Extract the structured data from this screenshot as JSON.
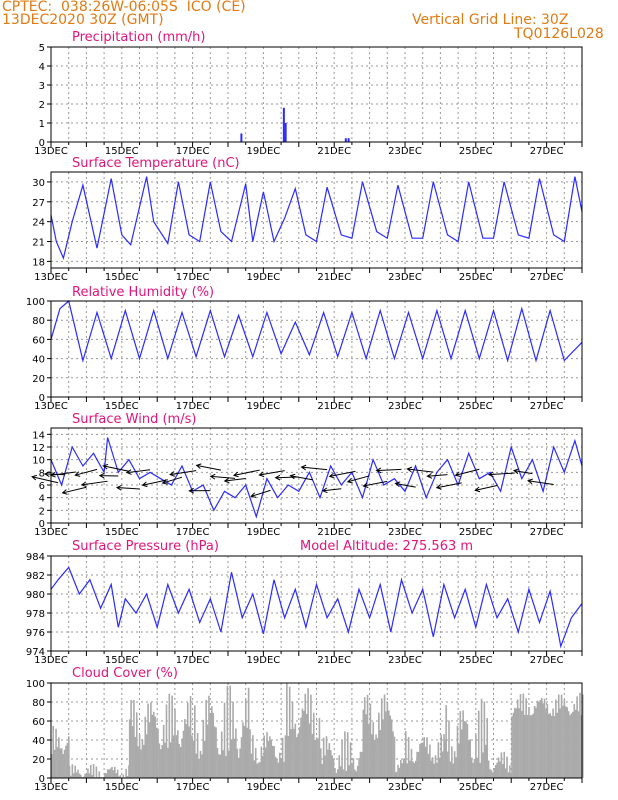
{
  "header": {
    "line1": "CPTEC:  038:26W-06:05S  ICO (CE)",
    "line2": "13DEC2020 30Z (GMT)",
    "vgrid": "Vertical Grid Line: 30Z",
    "code": "TQ0126L028"
  },
  "colors": {
    "header": "#e07b14",
    "title": "#e0157a",
    "line": "#2b2bff",
    "cloud": "#aaaaaa",
    "grid": "#999999"
  },
  "x_labels": [
    "13DEC",
    "15DEC",
    "17DEC",
    "19DEC",
    "21DEC",
    "23DEC",
    "25DEC",
    "27DEC"
  ],
  "chart_data": [
    {
      "type": "bar",
      "title": "Precipitation (mm/h)",
      "ylim": [
        0,
        5
      ],
      "yticks": [
        0,
        1,
        2,
        3,
        4,
        5
      ],
      "x_range_days": [
        0,
        15
      ],
      "bars": [
        {
          "x": 5.35,
          "y": 0.45
        },
        {
          "x": 6.55,
          "y": 1.8
        },
        {
          "x": 6.6,
          "y": 1.0
        },
        {
          "x": 8.3,
          "y": 0.2
        },
        {
          "x": 8.38,
          "y": 0.2
        }
      ]
    },
    {
      "type": "line",
      "title": "Surface Temperature (nC)",
      "ylim": [
        17,
        31.5
      ],
      "yticks": [
        18,
        21,
        24,
        27,
        30
      ],
      "x_range_days": [
        0,
        15
      ],
      "series": [
        {
          "x": [
            0,
            0.15,
            0.35,
            0.6,
            0.9,
            1.3,
            1.7,
            2.0,
            2.25,
            2.7,
            2.9,
            3.3,
            3.6,
            3.9,
            4.2,
            4.5,
            4.8,
            5.1,
            5.5,
            5.7,
            6.0,
            6.3,
            6.6,
            6.9,
            7.2,
            7.5,
            7.8,
            8.2,
            8.5,
            8.8,
            9.2,
            9.5,
            9.8,
            10.2,
            10.5,
            10.8,
            11.2,
            11.5,
            11.8,
            12.2,
            12.5,
            12.8,
            13.2,
            13.5,
            13.8,
            14.2,
            14.5,
            14.8,
            15.0
          ],
          "y": [
            25,
            21,
            18.5,
            24,
            29.5,
            20,
            30.5,
            22,
            20.5,
            30.8,
            24,
            20.7,
            30,
            22,
            21,
            30,
            22.5,
            21,
            29.7,
            21,
            28.5,
            21,
            24.5,
            29,
            22,
            21,
            29.2,
            22,
            21.5,
            30,
            22.5,
            21.5,
            29.5,
            21.5,
            21.5,
            30,
            22,
            21,
            30,
            21.5,
            21.5,
            30,
            22,
            21.5,
            30.5,
            22,
            21,
            30.8,
            25.5
          ]
        }
      ]
    },
    {
      "type": "line",
      "title": "Relative Humidity (%)",
      "ylim": [
        0,
        100
      ],
      "yticks": [
        0,
        20,
        40,
        60,
        80,
        100
      ],
      "x_range_days": [
        0,
        15
      ],
      "series": [
        {
          "x": [
            0,
            0.25,
            0.5,
            0.9,
            1.3,
            1.7,
            2.1,
            2.5,
            2.9,
            3.3,
            3.7,
            4.1,
            4.5,
            4.9,
            5.3,
            5.7,
            6.1,
            6.5,
            6.9,
            7.3,
            7.7,
            8.1,
            8.5,
            8.9,
            9.3,
            9.7,
            10.1,
            10.5,
            10.9,
            11.3,
            11.7,
            12.1,
            12.5,
            12.9,
            13.3,
            13.7,
            14.1,
            14.5,
            15.0
          ],
          "y": [
            60,
            92,
            100,
            38,
            88,
            40,
            90,
            40,
            90,
            40,
            88,
            42,
            90,
            42,
            85,
            42,
            88,
            45,
            78,
            44,
            88,
            42,
            88,
            40,
            90,
            40,
            88,
            40,
            90,
            40,
            90,
            40,
            90,
            38,
            92,
            38,
            90,
            38,
            57
          ]
        }
      ]
    },
    {
      "type": "line",
      "title": "Surface Wind (m/s)",
      "ylim": [
        0,
        15
      ],
      "yticks": [
        0,
        2,
        4,
        6,
        8,
        10,
        12,
        14
      ],
      "x_range_days": [
        0,
        15
      ],
      "series": [
        {
          "x": [
            0,
            0.3,
            0.6,
            0.9,
            1.2,
            1.5,
            1.6,
            1.9,
            2.2,
            2.5,
            2.8,
            3.1,
            3.4,
            3.7,
            4.0,
            4.3,
            4.6,
            4.9,
            5.2,
            5.5,
            5.8,
            6.1,
            6.4,
            6.7,
            7.0,
            7.3,
            7.6,
            7.9,
            8.2,
            8.5,
            8.8,
            9.1,
            9.4,
            9.7,
            10.0,
            10.3,
            10.6,
            10.9,
            11.2,
            11.5,
            11.8,
            12.1,
            12.4,
            12.7,
            13.0,
            13.3,
            13.6,
            13.9,
            14.2,
            14.5,
            14.8,
            15.0
          ],
          "y": [
            10,
            6,
            12,
            9,
            11,
            8,
            13.5,
            8,
            10,
            7,
            8,
            7,
            6,
            9,
            5,
            6,
            2,
            5,
            4,
            6,
            1,
            7,
            4,
            6,
            5,
            8,
            4,
            9,
            6,
            8,
            4,
            10,
            6,
            7,
            5,
            9,
            4,
            8,
            10,
            6,
            11,
            7,
            8,
            5,
            12,
            7,
            10,
            5,
            12,
            8,
            13,
            9
          ]
        }
      ],
      "vectors": [
        0.2,
        0.4,
        0.7,
        1.0,
        1.3,
        1.6,
        1.9,
        2.2,
        2.5,
        2.8,
        3.3,
        3.7,
        4.1,
        4.5,
        4.8,
        5.2,
        5.5,
        5.9,
        6.2,
        6.6,
        7.0,
        7.4,
        7.8,
        8.2,
        8.6,
        9.0,
        9.5,
        9.9,
        10.3,
        10.8,
        11.2,
        11.6,
        12.1,
        12.6,
        13.1,
        13.6,
        14.2
      ]
    },
    {
      "type": "line",
      "title": "Surface Pressure (hPa)",
      "annotation": "Model Altitude: 275.563 m",
      "ylim": [
        974,
        984
      ],
      "yticks": [
        974,
        976,
        978,
        980,
        982,
        984
      ],
      "x_range_days": [
        0,
        15
      ],
      "series": [
        {
          "x": [
            0,
            0.2,
            0.5,
            0.8,
            1.1,
            1.4,
            1.7,
            1.9,
            2.1,
            2.4,
            2.7,
            3.0,
            3.3,
            3.6,
            3.9,
            4.2,
            4.5,
            4.8,
            5.1,
            5.4,
            5.7,
            6.0,
            6.3,
            6.6,
            6.9,
            7.2,
            7.5,
            7.8,
            8.1,
            8.4,
            8.7,
            9.0,
            9.3,
            9.6,
            9.9,
            10.2,
            10.5,
            10.8,
            11.1,
            11.4,
            11.7,
            12.0,
            12.3,
            12.6,
            12.9,
            13.2,
            13.5,
            13.8,
            14.1,
            14.4,
            14.7,
            15.0
          ],
          "y": [
            980.5,
            981.5,
            982.8,
            980,
            981.5,
            978.5,
            981,
            976.5,
            979.5,
            978,
            980,
            976.5,
            981,
            978,
            980.5,
            977,
            979.5,
            976,
            982.3,
            977.5,
            980,
            975.8,
            981.5,
            977.5,
            980.5,
            976.5,
            981,
            977.5,
            979.5,
            976,
            980.5,
            977.5,
            981,
            976,
            981.5,
            978,
            980.5,
            975.5,
            981,
            977.5,
            980.5,
            976.5,
            981,
            977.5,
            979.5,
            976,
            980.5,
            977,
            980.3,
            974.5,
            977.5,
            979
          ]
        }
      ]
    },
    {
      "type": "bar",
      "title": "Cloud Cover (%)",
      "ylim": [
        0,
        100
      ],
      "yticks": [
        0,
        20,
        40,
        60,
        80,
        100
      ],
      "x_range_days": [
        0,
        15
      ],
      "segments": [
        {
          "x0": 0.0,
          "x1": 0.5,
          "lo": 25,
          "hi": 55
        },
        {
          "x0": 0.5,
          "x1": 2.2,
          "lo": 0,
          "hi": 15
        },
        {
          "x0": 2.2,
          "x1": 4.0,
          "lo": 30,
          "hi": 90
        },
        {
          "x0": 4.0,
          "x1": 5.6,
          "lo": 20,
          "hi": 100
        },
        {
          "x0": 5.6,
          "x1": 6.6,
          "lo": 15,
          "hi": 55
        },
        {
          "x0": 6.6,
          "x1": 7.6,
          "lo": 40,
          "hi": 100
        },
        {
          "x0": 7.6,
          "x1": 8.8,
          "lo": 5,
          "hi": 50
        },
        {
          "x0": 8.8,
          "x1": 9.7,
          "lo": 40,
          "hi": 95
        },
        {
          "x0": 9.7,
          "x1": 10.0,
          "lo": 5,
          "hi": 25
        },
        {
          "x0": 10.0,
          "x1": 11.1,
          "lo": 15,
          "hi": 50
        },
        {
          "x0": 11.1,
          "x1": 12.3,
          "lo": 15,
          "hi": 85
        },
        {
          "x0": 12.3,
          "x1": 13.0,
          "lo": 5,
          "hi": 30
        },
        {
          "x0": 13.0,
          "x1": 15.0,
          "lo": 65,
          "hi": 90
        }
      ]
    }
  ]
}
